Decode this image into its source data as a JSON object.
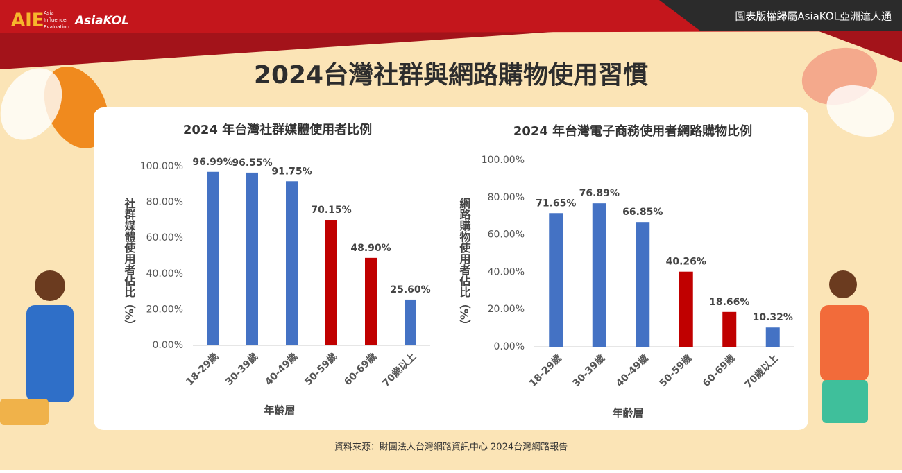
{
  "header": {
    "logo": "AIE",
    "logo_subtitle": [
      "Asia",
      "Influencer",
      "Evaluation"
    ],
    "brand": "AsiaKOL",
    "copyright": "圖表版權歸屬AsiaKOL亞洲達人通"
  },
  "title": "2024台灣社群與網路購物使用習慣",
  "chart_data": [
    {
      "type": "bar",
      "title": "2024 年台灣社群媒體使用者比例",
      "x_label": "年齡層",
      "y_label": "社群媒體使用者佔比（%）",
      "categories": [
        "18-29歲",
        "30-39歲",
        "40-49歲",
        "50-59歲",
        "60-69歲",
        "70歲以上"
      ],
      "values": [
        96.99,
        96.55,
        91.75,
        70.15,
        48.9,
        25.6
      ],
      "value_labels": [
        "96.99%",
        "96.55%",
        "91.75%",
        "70.15%",
        "48.90%",
        "25.60%"
      ],
      "colors": [
        "#4472c4",
        "#4472c4",
        "#4472c4",
        "#c00000",
        "#c00000",
        "#4472c4"
      ],
      "ylim": [
        0,
        100
      ],
      "yticks": [
        {
          "value": 0,
          "label": "0.00%"
        },
        {
          "value": 20,
          "label": "20.00%"
        },
        {
          "value": 40,
          "label": "40.00%"
        },
        {
          "value": 60,
          "label": "60.00%"
        },
        {
          "value": 80,
          "label": "80.00%"
        },
        {
          "value": 100,
          "label": "100.00%"
        }
      ],
      "grid": false
    },
    {
      "type": "bar",
      "title": "2024 年台灣電子商務使用者網路購物比例",
      "x_label": "年齡層",
      "y_label": "網路購物使用者佔比（%）",
      "categories": [
        "18-29歲",
        "30-39歲",
        "40-49歲",
        "50-59歲",
        "60-69歲",
        "70歲以上"
      ],
      "values": [
        71.65,
        76.89,
        66.85,
        40.26,
        18.66,
        10.32
      ],
      "value_labels": [
        "71.65%",
        "76.89%",
        "66.85%",
        "40.26%",
        "18.66%",
        "10.32%"
      ],
      "colors": [
        "#4472c4",
        "#4472c4",
        "#4472c4",
        "#c00000",
        "#c00000",
        "#4472c4"
      ],
      "ylim": [
        0,
        100
      ],
      "yticks": [
        {
          "value": 0,
          "label": "0.00%"
        },
        {
          "value": 20,
          "label": "20.00%"
        },
        {
          "value": 40,
          "label": "40.00%"
        },
        {
          "value": 60,
          "label": "60.00%"
        },
        {
          "value": 80,
          "label": "80.00%"
        },
        {
          "value": 100,
          "label": "100.00%"
        }
      ],
      "grid": false
    }
  ],
  "source": "資料來源：財團法人台灣網路資訊中心 2024台灣網路報告"
}
